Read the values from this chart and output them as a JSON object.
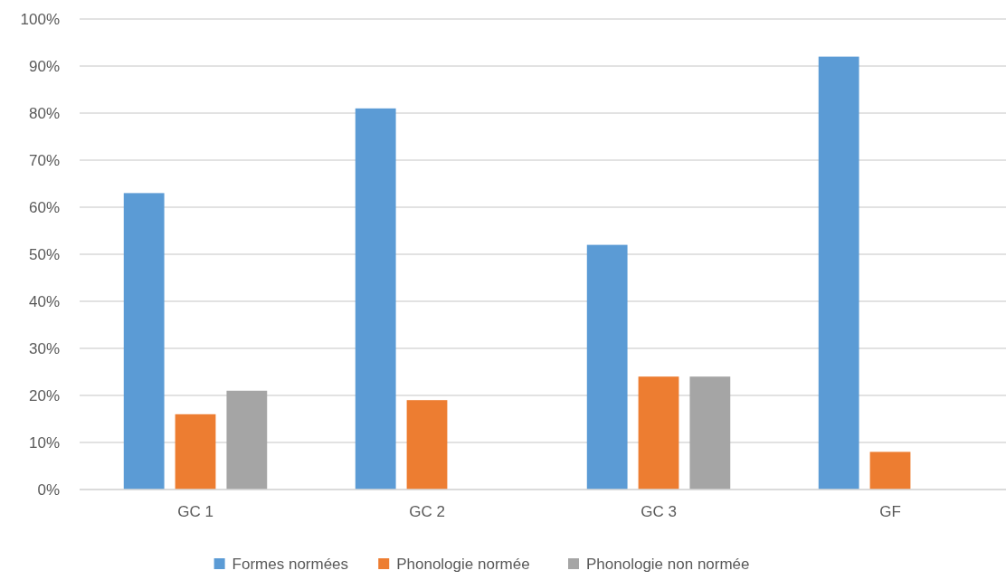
{
  "chart_data": {
    "type": "bar",
    "categories": [
      "GC 1",
      "GC 2",
      "GC 3",
      "GF"
    ],
    "series": [
      {
        "name": "Formes normées",
        "color": "#5b9bd5",
        "values": [
          63,
          81,
          52,
          92
        ]
      },
      {
        "name": "Phonologie normée",
        "color": "#ed7d31",
        "values": [
          16,
          19,
          24,
          8
        ]
      },
      {
        "name": "Phonologie non normée",
        "color": "#a5a5a5",
        "values": [
          21,
          null,
          24,
          null
        ]
      }
    ],
    "ylim": [
      0,
      100
    ],
    "yticks": [
      {
        "value": 0,
        "label": "0%"
      },
      {
        "value": 10,
        "label": "10%"
      },
      {
        "value": 20,
        "label": "20%"
      },
      {
        "value": 30,
        "label": "30%"
      },
      {
        "value": 40,
        "label": "40%"
      },
      {
        "value": 50,
        "label": "50%"
      },
      {
        "value": 60,
        "label": "60%"
      },
      {
        "value": 70,
        "label": "70%"
      },
      {
        "value": 80,
        "label": "80%"
      },
      {
        "value": 90,
        "label": "90%"
      },
      {
        "value": 100,
        "label": "100%"
      }
    ],
    "grid": "y",
    "legend": "bottom"
  }
}
